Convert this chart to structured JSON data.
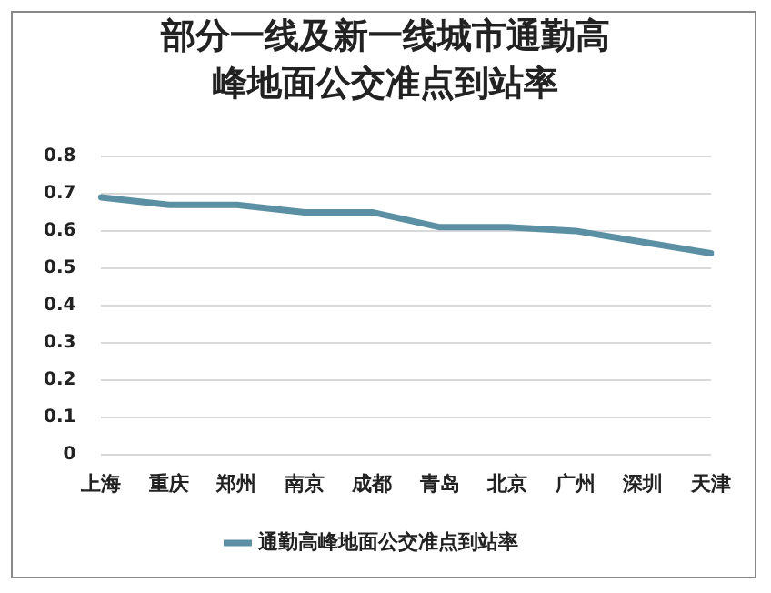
{
  "chart_data": {
    "type": "line",
    "title": "部分一线及新一线城市通勤高峰地面公交准点到站率",
    "categories": [
      "上海",
      "重庆",
      "郑州",
      "南京",
      "成都",
      "青岛",
      "北京",
      "广州",
      "深圳",
      "天津"
    ],
    "series": [
      {
        "name": "通勤高峰地面公交准点到站率",
        "color": "#5b8fa3",
        "values": [
          0.69,
          0.67,
          0.67,
          0.65,
          0.65,
          0.61,
          0.61,
          0.6,
          0.57,
          0.54
        ]
      }
    ],
    "ylim": [
      0,
      0.8
    ],
    "yticks": [
      0,
      0.1,
      0.2,
      0.3,
      0.4,
      0.5,
      0.6,
      0.7,
      0.8
    ],
    "grid": "y",
    "legend": "bottom",
    "marker": "none",
    "line_style": "solid"
  }
}
